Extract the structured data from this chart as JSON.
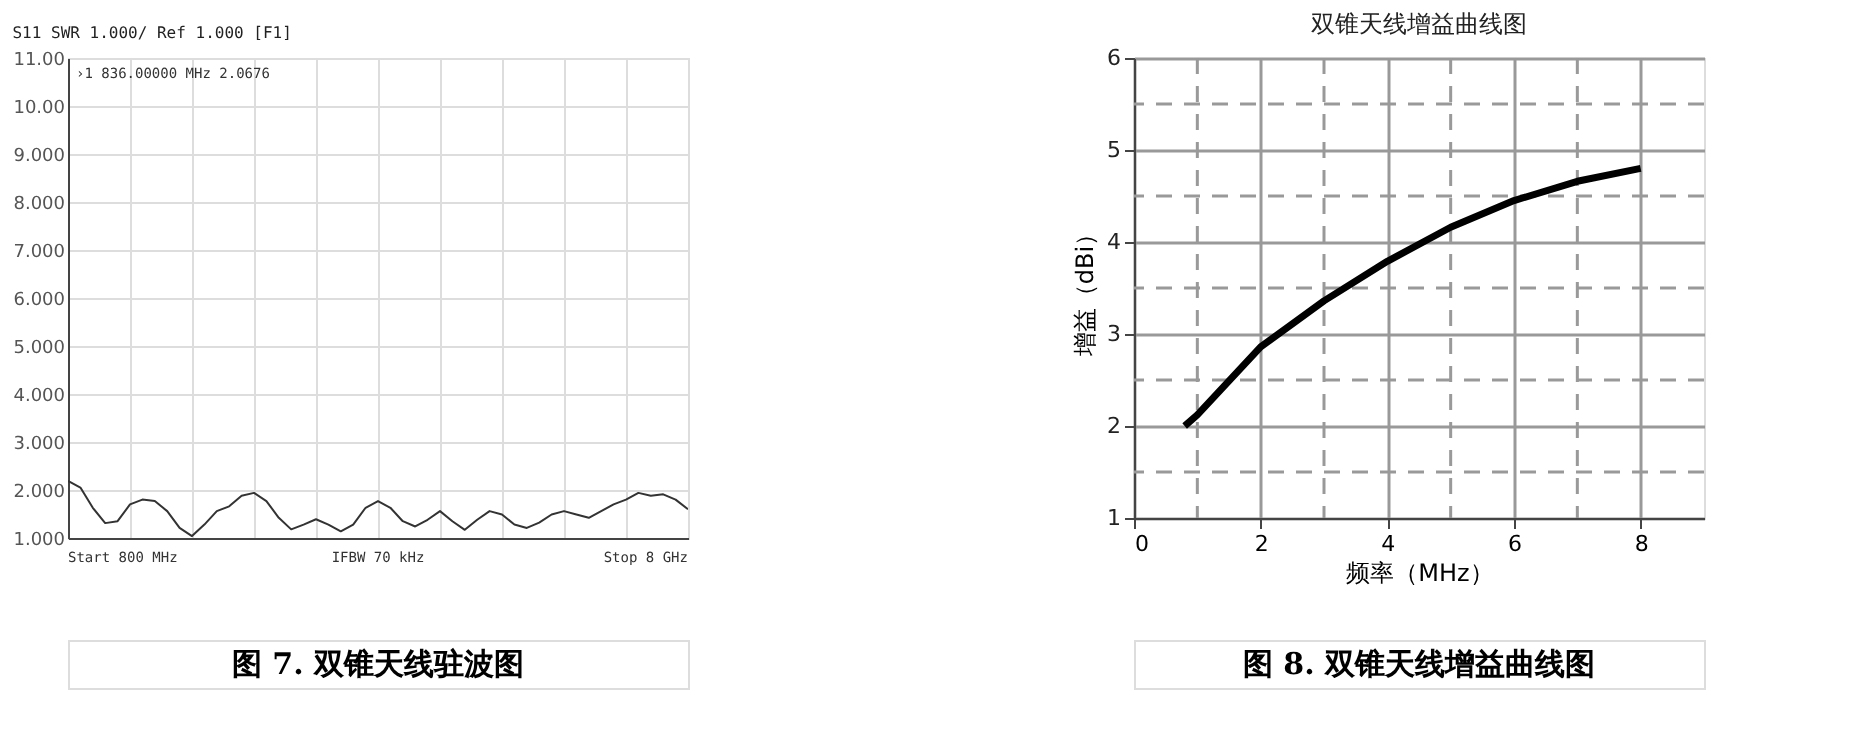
{
  "chart_data": [
    {
      "type": "line",
      "title": "S11 SWR 1.000/ Ref 1.000 [F1]",
      "categories": [
        null,
        null,
        null,
        null,
        null,
        null,
        null,
        null,
        null,
        null,
        null,
        null,
        null,
        null,
        null,
        null,
        null,
        null,
        null,
        null,
        null,
        null,
        null,
        null,
        null,
        null,
        null,
        null,
        null,
        null,
        null,
        null,
        null,
        null,
        null,
        null,
        null,
        null,
        null,
        null,
        null,
        null,
        null,
        null,
        null,
        null,
        null,
        null,
        null,
        null,
        null
      ],
      "series": [
        {
          "color": "#333333",
          "values": [
            2.19,
            2.05,
            1.63,
            1.31,
            1.35,
            1.7,
            1.8,
            1.77,
            1.56,
            1.21,
            1.04,
            1.28,
            1.56,
            1.66,
            1.88,
            1.94,
            1.77,
            1.42,
            1.18,
            1.28,
            1.39,
            1.28,
            1.14,
            1.28,
            1.63,
            1.77,
            1.63,
            1.35,
            1.24,
            1.38,
            1.56,
            1.35,
            1.17,
            1.38,
            1.56,
            1.49,
            1.28,
            1.21,
            1.32,
            1.49,
            1.56,
            1.49,
            1.42,
            1.56,
            1.7,
            1.8,
            1.94,
            1.88,
            1.91,
            1.8,
            1.6
          ]
        }
      ],
      "ylim": [
        1,
        11
      ],
      "yticks": [
        {
          "value": 1,
          "label": "1.000"
        },
        {
          "value": 2,
          "label": "2.000"
        },
        {
          "value": 3,
          "label": "3.000"
        },
        {
          "value": 4,
          "label": "4.000"
        },
        {
          "value": 5,
          "label": "5.000"
        },
        {
          "value": 6,
          "label": "6.000"
        },
        {
          "value": 7,
          "label": "7.000"
        },
        {
          "value": 8,
          "label": "8.000"
        },
        {
          "value": 9,
          "label": "9.000"
        },
        {
          "value": 10,
          "label": "10.00"
        },
        {
          "value": 11,
          "label": "11.00"
        }
      ],
      "grid": true,
      "tick_labels": "y",
      "marker": "none",
      "line_style": "solid",
      "annotations": [
        "›1  836.00000 MHz  2.0676",
        "Start 800 MHz",
        "IFBW 70 kHz",
        "Stop 8 GHz",
        "图 7. 双锥天线驻波图"
      ]
    },
    {
      "type": "line",
      "title": "双锥天线增益曲线图",
      "xlabel": "频率（MHz）",
      "ylabel": "增益（dBi）",
      "x": [
        0.8,
        1,
        2,
        3,
        4,
        5,
        6,
        7,
        8
      ],
      "series": [
        {
          "color": "#000000",
          "values": [
            2.0,
            2.12,
            2.86,
            3.36,
            3.79,
            4.16,
            4.45,
            4.66,
            4.8
          ]
        }
      ],
      "xlim": [
        0,
        9
      ],
      "xticks": [
        0,
        {
          "value": 1,
          "label": null
        },
        2,
        {
          "value": 3,
          "label": null
        },
        4,
        {
          "value": 5,
          "label": null
        },
        6,
        {
          "value": 7,
          "label": null
        },
        8
      ],
      "ylim": [
        1,
        6
      ],
      "yticks": [
        1,
        {
          "value": 1.5,
          "label": null
        },
        2,
        {
          "value": 2.5,
          "label": null
        },
        3,
        {
          "value": 3.5,
          "label": null
        },
        4,
        {
          "value": 4.5,
          "label": null
        },
        5,
        {
          "value": 5.5,
          "label": null
        },
        6
      ],
      "grid": true,
      "marker": "none",
      "line_style": "solid",
      "annotations": [
        "图 8. 双锥天线增益曲线图"
      ]
    }
  ]
}
